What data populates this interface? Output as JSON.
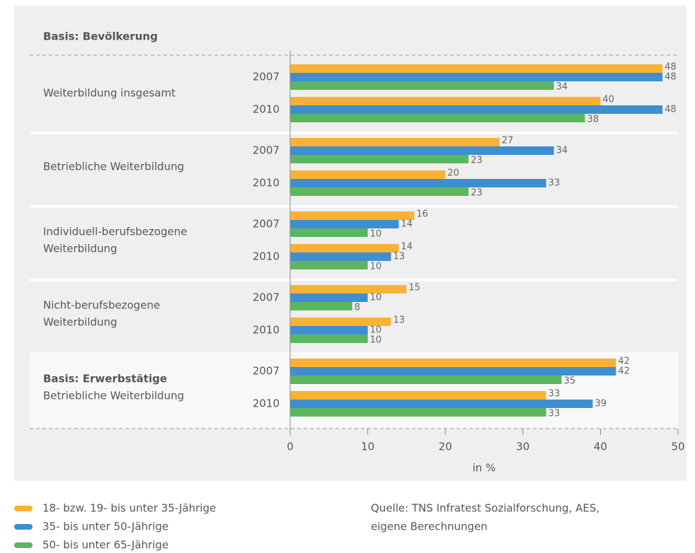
{
  "chart_data": {
    "type": "bar",
    "orientation": "horizontal",
    "basis_label": "Basis: Bevölkerung",
    "groups": [
      {
        "lines": [
          "Weiterbildung insgesamt"
        ]
      },
      {
        "lines": [
          "Betriebliche Weiterbildung"
        ]
      },
      {
        "lines": [
          "Individuell-berufsbezogene",
          "Weiterbildung"
        ]
      },
      {
        "lines": [
          "Nicht-berufsbezogene",
          "Weiterbildung"
        ]
      },
      {
        "heading": "Basis: Erwerbstätige",
        "lines": [
          "Betriebliche Weiterbildung"
        ]
      }
    ],
    "categories": [
      "2007",
      "2010",
      "2007",
      "2010",
      "2007",
      "2010",
      "2007",
      "2010",
      "2007",
      "2010"
    ],
    "series": [
      {
        "name": "18- bzw. 19- bis unter 35-Jährige",
        "color": "#f9b233",
        "values": [
          48,
          40,
          27,
          20,
          16,
          14,
          15,
          13,
          42,
          33
        ]
      },
      {
        "name": "35- bis unter 50-Jährige",
        "color": "#3d8fd1",
        "values": [
          48,
          48,
          34,
          33,
          14,
          13,
          10,
          10,
          42,
          39
        ]
      },
      {
        "name": "50- bis unter 65-Jährige",
        "color": "#5cb660",
        "values": [
          34,
          38,
          23,
          23,
          10,
          10,
          8,
          10,
          35,
          33
        ]
      }
    ],
    "xlim": [
      0,
      50
    ],
    "xticks": [
      0,
      10,
      20,
      30,
      40,
      50
    ],
    "xlabel": "in %",
    "source": [
      "Quelle: TNS Infratest Sozialforschung, AES,",
      "eigene Berechnungen"
    ]
  }
}
